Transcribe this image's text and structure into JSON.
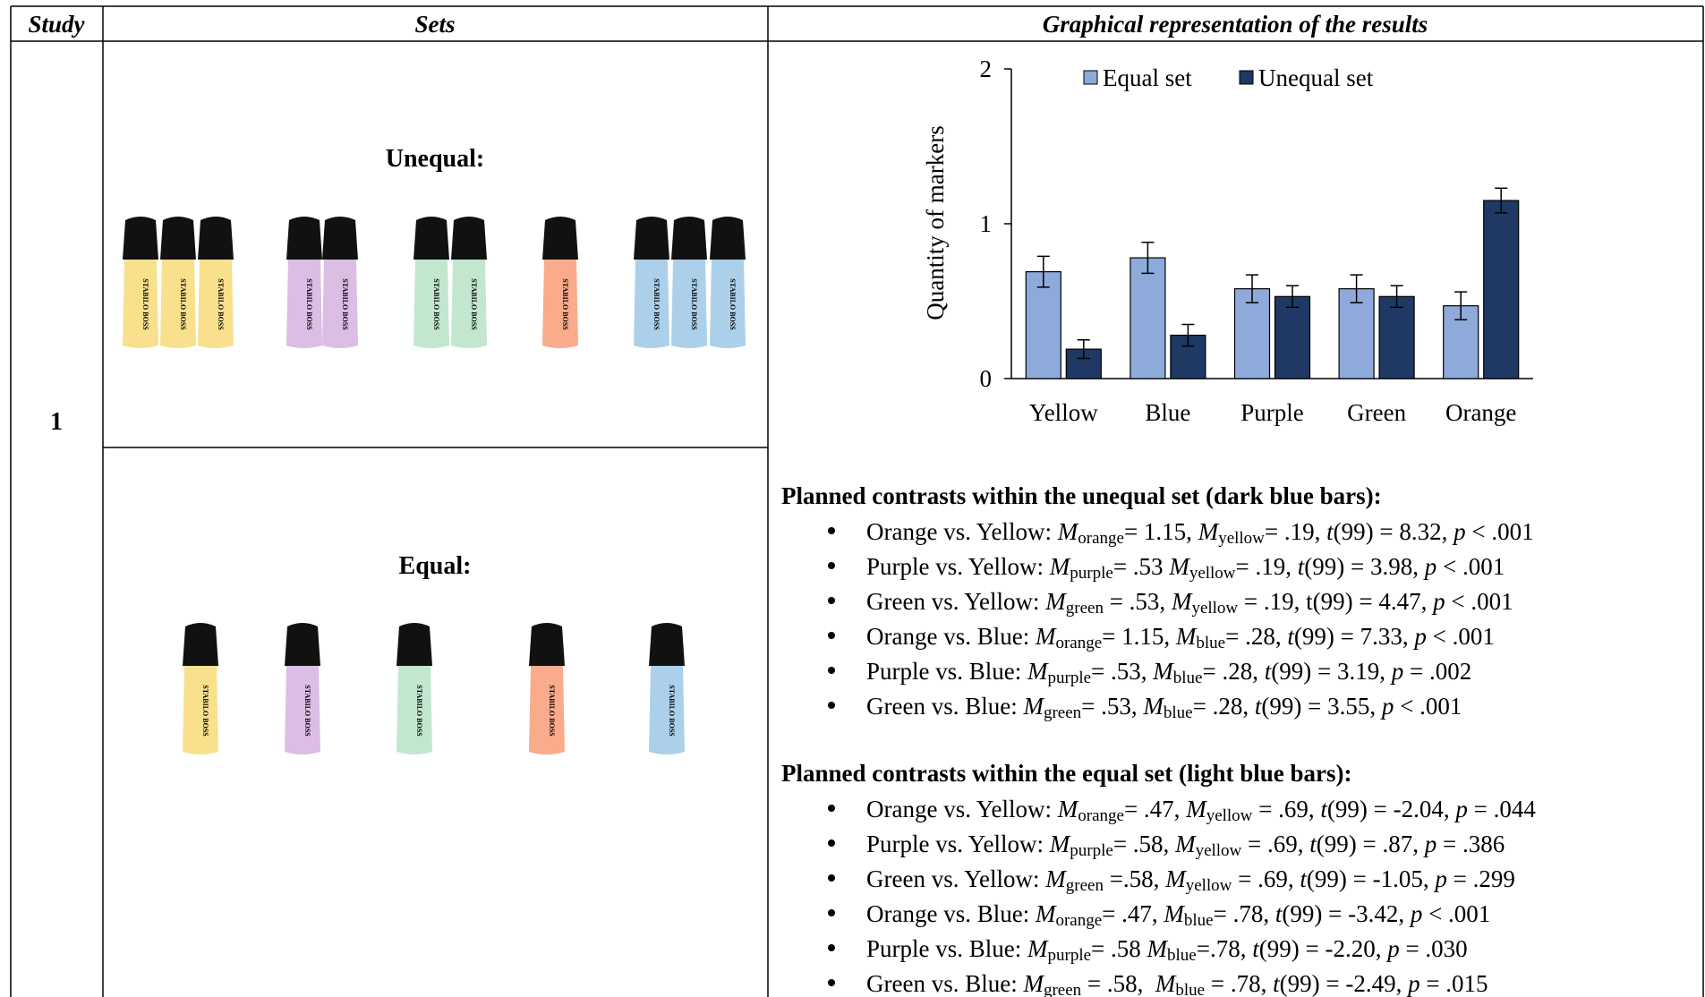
{
  "header": {
    "study": "Study",
    "sets": "Sets",
    "results": "Graphical representation of the results"
  },
  "study": "1",
  "sets": {
    "unequal": "Unequal:",
    "equal": "Equal:",
    "brand": "STABILO BOSS"
  },
  "chart_data": {
    "type": "bar",
    "ylabel": "Quantity of markers",
    "categories": [
      "Yellow",
      "Blue",
      "Purple",
      "Green",
      "Orange"
    ],
    "series": [
      {
        "name": "Equal set",
        "color": "#8eaadb",
        "values": [
          0.69,
          0.78,
          0.58,
          0.58,
          0.47
        ],
        "errors": [
          0.1,
          0.1,
          0.09,
          0.09,
          0.09
        ]
      },
      {
        "name": "Unequal set",
        "color": "#1f3864",
        "values": [
          0.19,
          0.28,
          0.53,
          0.53,
          1.15
        ],
        "errors": [
          0.06,
          0.07,
          0.07,
          0.07,
          0.08
        ]
      }
    ],
    "ylim": [
      0,
      2
    ],
    "yticks": [
      0,
      1,
      2
    ],
    "legend": "top"
  },
  "sections": [
    {
      "heading": "Planned contrasts within the unequal set (dark blue bars):",
      "items": [
        [
          "Orange vs. Yellow: ",
          {
            "i": "M"
          },
          {
            "sub": "orange"
          },
          "= 1.15, ",
          {
            "i": "M"
          },
          {
            "sub": "yellow"
          },
          "= .19, ",
          {
            "i": "t"
          },
          "(99) = 8.32, ",
          {
            "i": "p"
          },
          " < .001"
        ],
        [
          "Purple vs. Yellow: ",
          {
            "i": "M"
          },
          {
            "sub": "purple"
          },
          "= .53 ",
          {
            "i": "M"
          },
          {
            "sub": "yellow"
          },
          "= .19, ",
          {
            "i": "t"
          },
          "(99) = 3.98, ",
          {
            "i": "p"
          },
          " < .001"
        ],
        [
          "Green vs. Yellow: ",
          {
            "i": "M"
          },
          {
            "sub": "green"
          },
          " = .53, ",
          {
            "i": "M"
          },
          {
            "sub": "yellow"
          },
          " = .19, t(99) = 4.47, ",
          {
            "i": "p"
          },
          " < .001"
        ],
        [
          "Orange vs. Blue: ",
          {
            "i": "M"
          },
          {
            "sub": "orange"
          },
          "= 1.15, ",
          {
            "i": "M"
          },
          {
            "sub": "blue"
          },
          "= .28, ",
          {
            "i": "t"
          },
          "(99) = 7.33, ",
          {
            "i": "p"
          },
          " < .001"
        ],
        [
          "Purple vs. Blue: ",
          {
            "i": "M"
          },
          {
            "sub": "purple"
          },
          "= .53, ",
          {
            "i": "M"
          },
          {
            "sub": "blue"
          },
          "= .28, ",
          {
            "i": "t"
          },
          "(99) = 3.19, ",
          {
            "i": "p"
          },
          " = .002"
        ],
        [
          "Green vs. Blue: ",
          {
            "i": "M"
          },
          {
            "sub": "green"
          },
          "= .53, ",
          {
            "i": "M"
          },
          {
            "sub": "blue"
          },
          "= .28, ",
          {
            "i": "t"
          },
          "(99) = 3.55, ",
          {
            "i": "p"
          },
          " < .001"
        ]
      ]
    },
    {
      "heading": "Planned contrasts within the equal set (light blue bars):",
      "items": [
        [
          "Orange vs. Yellow: ",
          {
            "i": "M"
          },
          {
            "sub": "orange"
          },
          "= .47, ",
          {
            "i": "M"
          },
          {
            "sub": "yellow"
          },
          " = .69, ",
          {
            "i": "t"
          },
          "(99) = -2.04, ",
          {
            "i": "p"
          },
          " = .044"
        ],
        [
          "Purple vs. Yellow: ",
          {
            "i": "M"
          },
          {
            "sub": "purple"
          },
          "= .58, ",
          {
            "i": "M"
          },
          {
            "sub": "yellow"
          },
          " = .69, ",
          {
            "i": "t"
          },
          "(99) = .87, ",
          {
            "i": "p"
          },
          " = .386"
        ],
        [
          "Green vs. Yellow: ",
          {
            "i": "M"
          },
          {
            "sub": "green"
          },
          " =.58, ",
          {
            "i": "M"
          },
          {
            "sub": "yellow"
          },
          " = .69, ",
          {
            "i": "t"
          },
          "(99) = -1.05, ",
          {
            "i": "p"
          },
          " = .299"
        ],
        [
          "Orange vs. Blue: ",
          {
            "i": "M"
          },
          {
            "sub": "orange"
          },
          "= .47, ",
          {
            "i": "M"
          },
          {
            "sub": "blue"
          },
          "= .78, ",
          {
            "i": "t"
          },
          "(99) = -3.42, ",
          {
            "i": "p"
          },
          " < .001"
        ],
        [
          "Purple vs. Blue: ",
          {
            "i": "M"
          },
          {
            "sub": "purple"
          },
          "= .58 ",
          {
            "i": "M"
          },
          {
            "sub": "blue"
          },
          "=.78, ",
          {
            "i": "t"
          },
          "(99) = -2.20, ",
          {
            "i": "p"
          },
          " = .030"
        ],
        [
          "Green vs. Blue: ",
          {
            "i": "M"
          },
          {
            "sub": "green"
          },
          " = .58,  ",
          {
            "i": "M"
          },
          {
            "sub": "blue"
          },
          " = .78, ",
          {
            "i": "t"
          },
          "(99) = -2.49, ",
          {
            "i": "p"
          },
          " = .015"
        ]
      ]
    }
  ]
}
